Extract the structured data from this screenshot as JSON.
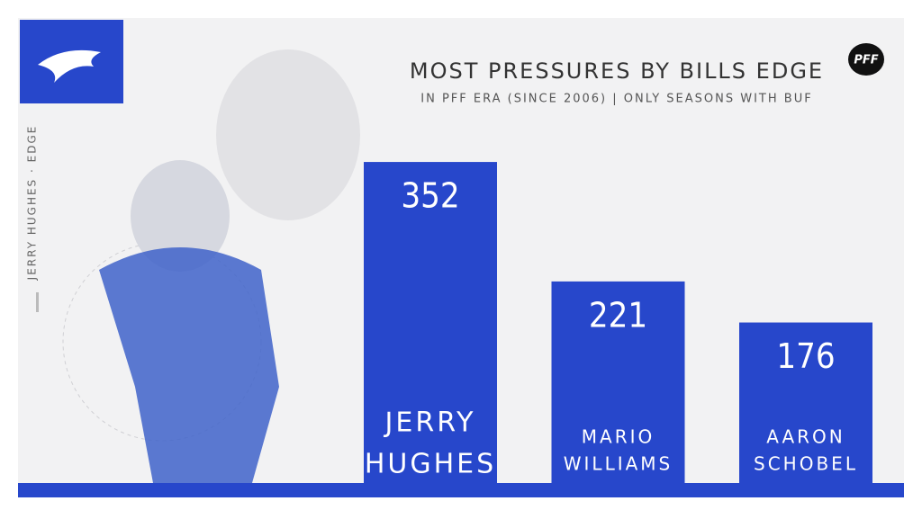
{
  "chart_data": {
    "type": "bar",
    "title": "MOST PRESSURES BY BILLS EDGE",
    "subtitle": "IN PFF ERA (SINCE 2006) | ONLY SEASONS WITH BUF",
    "side_label": "JERRY HUGHES · EDGE",
    "brand": "PFF",
    "categories": [
      [
        "JERRY",
        "HUGHES"
      ],
      [
        "MARIO",
        "WILLIAMS"
      ],
      [
        "AARON",
        "SCHOBEL"
      ]
    ],
    "values": [
      352,
      221,
      176
    ],
    "color": "#2747cb",
    "ylim": [
      0,
      500
    ]
  }
}
